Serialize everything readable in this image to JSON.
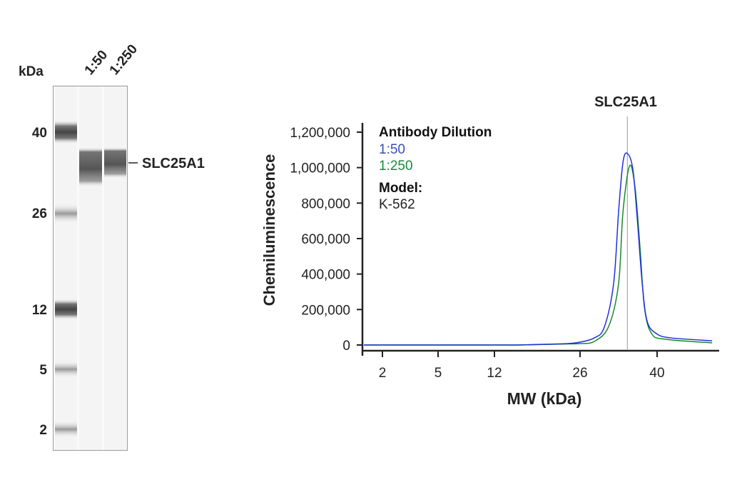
{
  "blot": {
    "unit_label": "kDa",
    "lane_labels": [
      "1:50",
      "1:250"
    ],
    "ladder_marks": [
      "40",
      "26",
      "12",
      "5",
      "2"
    ],
    "band_label": "SLC25A1"
  },
  "chart_data": {
    "type": "line",
    "title": "SLC25A1",
    "xlabel": "MW (kDa)",
    "ylabel": "Chemiluminescence",
    "x_ticks": [
      2,
      5,
      12,
      26,
      40
    ],
    "x_scale": "nonlinear (capillary MW calibration)",
    "ylim": [
      0,
      1200000
    ],
    "y_ticks": [
      0,
      200000,
      400000,
      600000,
      800000,
      1000000,
      1200000
    ],
    "y_tick_labels": [
      "0",
      "200,000",
      "400,000",
      "600,000",
      "800,000",
      "1,000,000",
      "1,200,000"
    ],
    "grid": false,
    "reference_line_kDa": 34.6,
    "legend": {
      "title": "Antibody Dilution",
      "model_label": "Model:",
      "model_value": "K-562",
      "position": "top-left"
    },
    "series": [
      {
        "name": "1:50",
        "color": "#1f2fe0",
        "label_color": "#3a4fb0",
        "x": [
          1,
          2,
          5,
          12,
          16,
          20,
          24,
          26,
          28.6,
          30.4,
          32.1,
          33.0,
          33.8,
          34.6,
          35.6,
          36.4,
          37.3,
          38.2,
          39.9,
          42.5,
          50
        ],
        "y": [
          0,
          0,
          0,
          0,
          0,
          4000,
          8000,
          16000,
          40000,
          100000,
          346000,
          750000,
          1030000,
          1080000,
          990000,
          710000,
          346000,
          133000,
          64000,
          40000,
          24000
        ]
      },
      {
        "name": "1:250",
        "color": "#178a2e",
        "label_color": "#178a3a",
        "x": [
          1,
          2,
          5,
          12,
          16,
          20,
          24,
          26,
          28.6,
          31.2,
          33.0,
          33.8,
          35.0,
          36.0,
          36.9,
          37.7,
          39.0,
          41.6,
          50
        ],
        "y": [
          0,
          0,
          0,
          0,
          0,
          3000,
          6000,
          8000,
          20000,
          105000,
          346000,
          750000,
          1010000,
          885000,
          548000,
          213000,
          64000,
          32000,
          12000
        ]
      }
    ]
  }
}
